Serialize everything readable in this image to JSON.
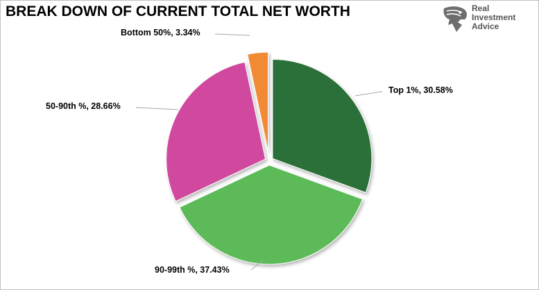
{
  "header": {
    "title": "BREAK DOWN OF CURRENT TOTAL NET WORTH"
  },
  "logo": {
    "line1": "Real",
    "line2": "Investment",
    "line3": "Advice",
    "icon": "eagle-head-icon"
  },
  "chart_data": {
    "type": "pie",
    "title": "BREAK DOWN OF CURRENT TOTAL NET WORTH",
    "exploded": true,
    "slices": [
      {
        "name": "Top 1%",
        "value": 30.58,
        "color": "#2b7038",
        "label": "Top 1%, 30.58%"
      },
      {
        "name": "90-99th %",
        "value": 37.43,
        "color": "#5bbb58",
        "label": "90-99th %, 37.43%"
      },
      {
        "name": "50-90th %",
        "value": 28.66,
        "color": "#d14a9f",
        "label": "50-90th %, 28.66%"
      },
      {
        "name": "Bottom 50%",
        "value": 3.34,
        "color": "#f28a36",
        "label": "Bottom 50%, 3.34%"
      }
    ]
  }
}
